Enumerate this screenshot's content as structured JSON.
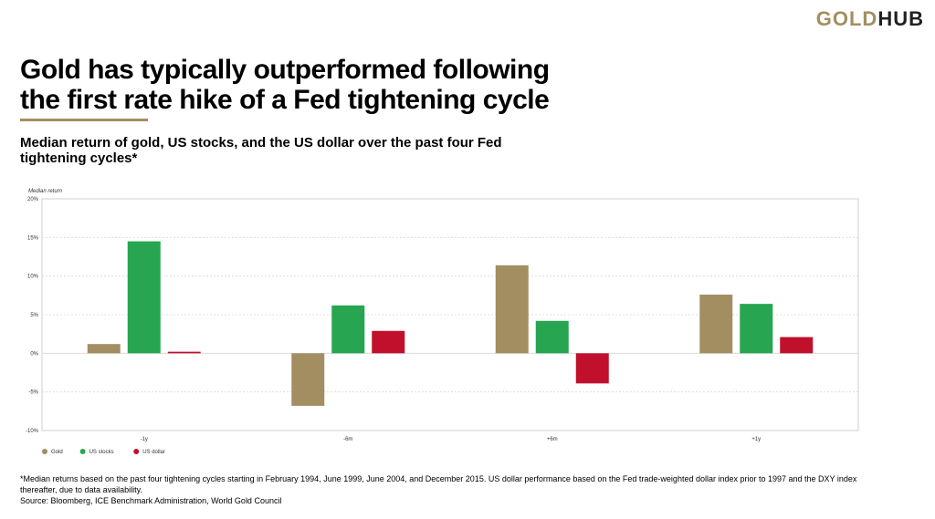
{
  "brand": {
    "part1": "GOLD",
    "part2": "HUB"
  },
  "title_lines": [
    "Gold has typically outperformed following",
    "the first rate hike of a Fed tightening cycle"
  ],
  "subtitle_lines": [
    "Median return of gold, US stocks, and the US dollar over the past four Fed",
    "tightening cycles*"
  ],
  "footnote_lines": [
    "*Median returns based on the past four tightening cycles starting in February 1994, June 1999, June 2004, and December 2015. US dollar performance based on the Fed trade-weighted dollar index prior to 1997 and the DXY index",
    "thereafter, due to data availability.",
    "Source: Bloomberg, ICE Benchmark Administration, World Gold Council"
  ],
  "colors": {
    "gold": "#a38e62",
    "stocks": "#27a550",
    "dollar": "#c0102b",
    "grid": "#d9d9d9"
  },
  "chart_data": {
    "type": "bar",
    "ylabel": "Median return",
    "categories": [
      "-1y",
      "-6m",
      "+6m",
      "+1y"
    ],
    "ylim": [
      -10,
      20
    ],
    "yticks": [
      20,
      15,
      10,
      5,
      0,
      -5,
      -10
    ],
    "ytick_labels": [
      "20%",
      "15%",
      "10%",
      "5%",
      "0%",
      "-5%",
      "-10%"
    ],
    "grid": true,
    "legend_position": "bottom-left",
    "series": [
      {
        "name": "Gold",
        "color": "#a38e62",
        "values": [
          1.2,
          -6.8,
          11.4,
          7.6
        ]
      },
      {
        "name": "US stocks",
        "color": "#27a550",
        "values": [
          14.5,
          6.2,
          4.2,
          6.4
        ]
      },
      {
        "name": "US dollar",
        "color": "#c0102b",
        "values": [
          0.2,
          2.9,
          -3.9,
          2.1
        ]
      }
    ]
  }
}
